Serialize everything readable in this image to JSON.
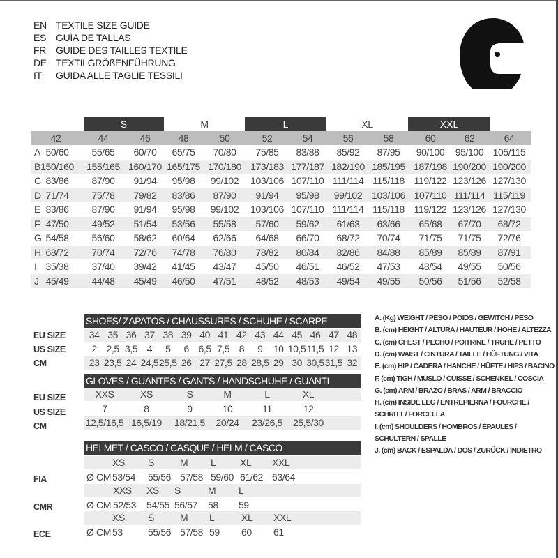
{
  "titles": [
    {
      "code": "EN",
      "text": "TEXTILE SIZE GUIDE"
    },
    {
      "code": "ES",
      "text": "GUÍA DE TALLAS"
    },
    {
      "code": "FR",
      "text": "GUIDE DES TAILLES TEXTILE"
    },
    {
      "code": "DE",
      "text": "TEXTILGRÖßENFÜHRUNG"
    },
    {
      "code": "IT",
      "text": "GUIDA ALLE TAGLIE TESSILI"
    }
  ],
  "icon": "helmet-icon",
  "textile": {
    "letter_sizes": [
      "S",
      "M",
      "L",
      "XL",
      "XXL"
    ],
    "sizes": [
      "42",
      "44",
      "46",
      "48",
      "50",
      "52",
      "54",
      "56",
      "58",
      "60",
      "62",
      "64"
    ],
    "rows": [
      {
        "label": "A",
        "values": [
          "50/60",
          "55/65",
          "60/70",
          "65/75",
          "70/80",
          "75/85",
          "83/88",
          "85/92",
          "87/95",
          "90/100",
          "95/100",
          "105/115"
        ]
      },
      {
        "label": "B",
        "values": [
          "150/160",
          "155/165",
          "160/170",
          "165/175",
          "170/180",
          "173/183",
          "177/187",
          "182/190",
          "185/195",
          "187/198",
          "190/200",
          "190/200"
        ]
      },
      {
        "label": "C",
        "values": [
          "83/86",
          "87/90",
          "91/94",
          "95/98",
          "99/102",
          "103/106",
          "107/110",
          "111/114",
          "115/118",
          "119/122",
          "123/126",
          "127/130"
        ]
      },
      {
        "label": "D",
        "values": [
          "71/74",
          "75/78",
          "79/82",
          "83/86",
          "87/90",
          "91/94",
          "95/98",
          "99/102",
          "103/106",
          "107/110",
          "111/114",
          "115/119"
        ]
      },
      {
        "label": "E",
        "values": [
          "83/86",
          "87/90",
          "91/94",
          "95/98",
          "99/102",
          "103/106",
          "107/110",
          "111/114",
          "115/118",
          "119/122",
          "123/126",
          "127/130"
        ]
      },
      {
        "label": "F",
        "values": [
          "47/50",
          "49/52",
          "51/54",
          "53/56",
          "55/58",
          "57/60",
          "59/62",
          "61/63",
          "63/66",
          "65/68",
          "67/70",
          "68/72"
        ]
      },
      {
        "label": "G",
        "values": [
          "54/58",
          "56/60",
          "58/62",
          "60/64",
          "62/66",
          "64/68",
          "66/70",
          "68/72",
          "70/74",
          "71/75",
          "71/75",
          "72/76"
        ]
      },
      {
        "label": "H",
        "values": [
          "68/72",
          "70/74",
          "72/76",
          "74/78",
          "76/80",
          "78/82",
          "80/84",
          "82/86",
          "84/88",
          "85/89",
          "85/89",
          "87/91"
        ]
      },
      {
        "label": "I",
        "values": [
          "35/38",
          "37/40",
          "39/42",
          "41/45",
          "43/47",
          "45/50",
          "46/51",
          "46/52",
          "47/53",
          "48/54",
          "49/55",
          "50/56"
        ]
      },
      {
        "label": "J",
        "values": [
          "45/49",
          "44/48",
          "45/49",
          "46/50",
          "47/51",
          "48/52",
          "48/53",
          "49/54",
          "49/55",
          "50/56",
          "51/56",
          "52/58"
        ]
      }
    ]
  },
  "shoes": {
    "title": "SHOES/ ZAPATOS / CHAUSSURES / SCHUHE / SCARPE",
    "rows": [
      {
        "label": "EU SIZE",
        "values": [
          "34",
          "35",
          "36",
          "37",
          "38",
          "39",
          "40",
          "41",
          "42",
          "43",
          "44",
          "45",
          "46",
          "47",
          "48"
        ]
      },
      {
        "label": "US SIZE",
        "values": [
          "2",
          "2,5",
          "3,5",
          "4",
          "5",
          "6",
          "6,5",
          "7,5",
          "8",
          "9",
          "10",
          "10,5",
          "11,5",
          "12",
          "13"
        ]
      },
      {
        "label": "CM",
        "values": [
          "23",
          "23,5",
          "24",
          "24,5",
          "25,5",
          "26",
          "27",
          "27,5",
          "28",
          "28,5",
          "29",
          "30",
          "30,5",
          "31,5",
          "32"
        ]
      }
    ]
  },
  "gloves": {
    "title": "GLOVES / GUANTES / GANTS / HANDSCHUHE / GUANTI",
    "rows": [
      {
        "label": "EU SIZE",
        "values": [
          "XXS",
          "XS",
          "S",
          "M",
          "L",
          "XL"
        ]
      },
      {
        "label": "US SIZE",
        "values": [
          "7",
          "8",
          "9",
          "10",
          "11",
          "12"
        ]
      },
      {
        "label": "CM",
        "values": [
          "12,5/16,5",
          "16,5/19",
          "18/21,5",
          "20/24",
          "23/26,5",
          "25,5/30"
        ]
      }
    ]
  },
  "helmet": {
    "title": "HELMET / CASCO / CASQUE / HELM / CASCO",
    "unit": "Ø CM",
    "standards": [
      {
        "label": "FIA",
        "sizes": [
          "XS",
          "S",
          "M",
          "L",
          "XL",
          "XXL"
        ],
        "values": [
          "53/54",
          "55/56",
          "57/58",
          "59/60",
          "61/62",
          "63/64"
        ]
      },
      {
        "label": "CMR",
        "sizes": [
          "XXS",
          "XS",
          "S",
          "M",
          "L"
        ],
        "values": [
          "52/53",
          "54/55",
          "56/57",
          "58",
          "59"
        ]
      },
      {
        "label": "ECE",
        "sizes": [
          "XS",
          "S",
          "M",
          "L",
          "XL",
          "XXL"
        ],
        "values": [
          "53",
          "55/56",
          "57/58",
          "59",
          "60",
          "61"
        ]
      }
    ]
  },
  "legend": [
    "A. (Kg) WEIGHT / PESO / POIDS / GEWITCH / PESO",
    "B. (cm) HEIGHT / ALTURA / HAUTEUR / HÖHE / ALTEZZA",
    "C. (cm) CHEST / PECHO / POITRINE / TRUHE / PETTO",
    "D. (cm) WAIST / CINTURA / TAILLE / HÜFTUNG / VITA",
    "E. (cm) HIP / CADERA / HANCHE / HÜFTE / HIPS /  BACINO",
    "F. (cm) TIGH / MUSLO / CUISSE / SCHENKEL / COSCIA",
    "G. (cm) ARM  / BRAZO / BRAS / ARM / BRACCIO",
    "H. (cm) INSIDE LEG / ENTREPIERNA / FOURCHE /",
    "SCHRITT / FORCELLA",
    "I. (cm) SHOULDERS / HOMBROS / ÉPAULES /",
    "SCHULTERN / SPALLE",
    "J. (cm) BACK / ESPALDA / DOS / ZURÜCK / INDIETRO"
  ]
}
